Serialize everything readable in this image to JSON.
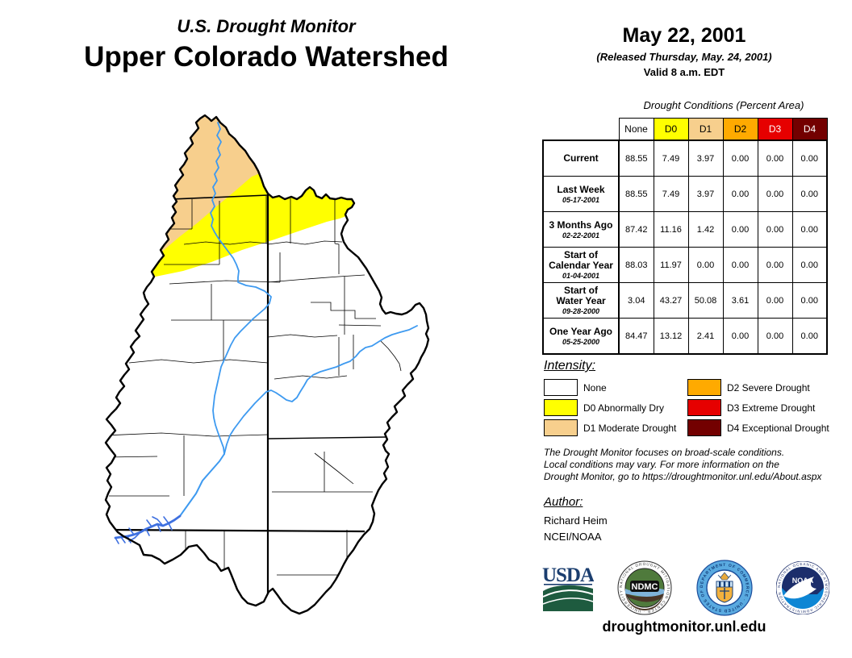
{
  "title": {
    "super": "U.S. Drought Monitor",
    "main": "Upper Colorado Watershed"
  },
  "date_block": {
    "date": "May 22, 2001",
    "released": "(Released Thursday, May. 24, 2001)",
    "valid": "Valid 8 a.m. EDT"
  },
  "table": {
    "caption": "Drought Conditions (Percent Area)",
    "columns": [
      "None",
      "D0",
      "D1",
      "D2",
      "D3",
      "D4"
    ],
    "rows": [
      {
        "label": "Current",
        "date": "",
        "values": [
          "88.55",
          "7.49",
          "3.97",
          "0.00",
          "0.00",
          "0.00"
        ]
      },
      {
        "label": "Last Week",
        "date": "05-17-2001",
        "values": [
          "88.55",
          "7.49",
          "3.97",
          "0.00",
          "0.00",
          "0.00"
        ]
      },
      {
        "label": "3 Months Ago",
        "date": "02-22-2001",
        "values": [
          "87.42",
          "11.16",
          "1.42",
          "0.00",
          "0.00",
          "0.00"
        ]
      },
      {
        "label": "Start of\nCalendar Year",
        "date": "01-04-2001",
        "values": [
          "88.03",
          "11.97",
          "0.00",
          "0.00",
          "0.00",
          "0.00"
        ]
      },
      {
        "label": "Start of\nWater Year",
        "date": "09-28-2000",
        "values": [
          "3.04",
          "43.27",
          "50.08",
          "3.61",
          "0.00",
          "0.00"
        ]
      },
      {
        "label": "One Year Ago",
        "date": "05-25-2000",
        "values": [
          "84.47",
          "13.12",
          "2.41",
          "0.00",
          "0.00",
          "0.00"
        ]
      }
    ]
  },
  "legend": {
    "heading": "Intensity:",
    "items": [
      {
        "code": "none",
        "label": "None"
      },
      {
        "code": "d0",
        "label": "D0 Abnormally Dry"
      },
      {
        "code": "d1",
        "label": "D1 Moderate Drought"
      },
      {
        "code": "d2",
        "label": "D2 Severe Drought"
      },
      {
        "code": "d3",
        "label": "D3 Extreme Drought"
      },
      {
        "code": "d4",
        "label": "D4 Exceptional Drought"
      }
    ]
  },
  "disclaimer": {
    "lines": [
      "The Drought Monitor focuses on broad-scale conditions.",
      "Local conditions may vary. For more information on the",
      "Drought Monitor, go to https://droughtmonitor.unl.edu/About.aspx"
    ]
  },
  "author": {
    "heading": "Author:",
    "name": "Richard Heim",
    "org": "NCEI/NOAA"
  },
  "logos": {
    "usda": "USDA",
    "ndmc": "NDMC",
    "doc": "DEPARTMENT OF COMMERCE",
    "noaa": "NOAA"
  },
  "footer": {
    "url": "droughtmonitor.unl.edu"
  },
  "colors": {
    "none": "#FFFFFF",
    "d0": "#FFFF00",
    "d1": "#F7CF8D",
    "d2": "#FFAA00",
    "d3": "#E60000",
    "d4": "#730000",
    "river": "#3E9AF0",
    "lake": "#3E70E0",
    "boundary": "#000000"
  }
}
